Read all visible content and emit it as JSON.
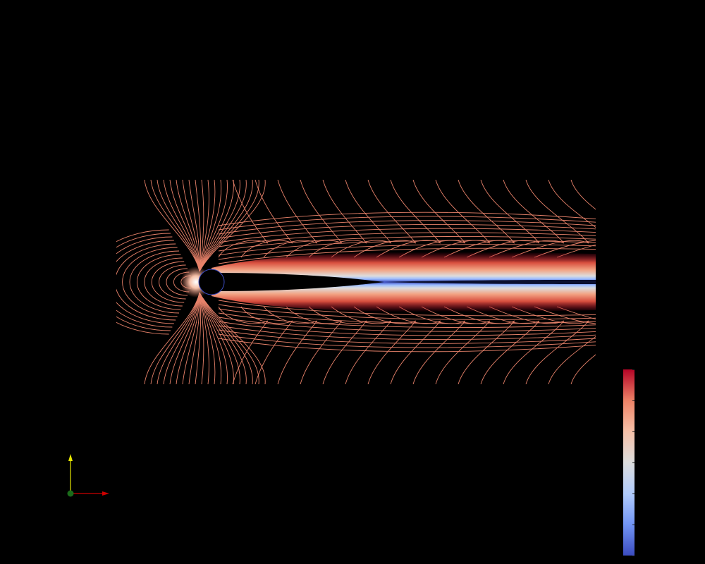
{
  "colors": {
    "background": "#000000",
    "colormap": [
      "#3b4cc0",
      "#7396f5",
      "#b0cbfc",
      "#dddddd",
      "#f6bfa6",
      "#ee8468",
      "#b40426"
    ],
    "contour_line": "#e8826a",
    "cylinder_outline": "#3b4cc0",
    "axis_x": "#cc0000",
    "axis_y": "#e6e600",
    "axis_origin": "#1a6b1a"
  },
  "render_view": {
    "visualization": "contour-plot",
    "object": "cylinder"
  },
  "color_legend": {
    "tick_count": 7
  },
  "orientation_axes": {
    "icons": [
      "x-axis-arrow-icon",
      "y-axis-arrow-icon",
      "origin-point-icon"
    ]
  }
}
